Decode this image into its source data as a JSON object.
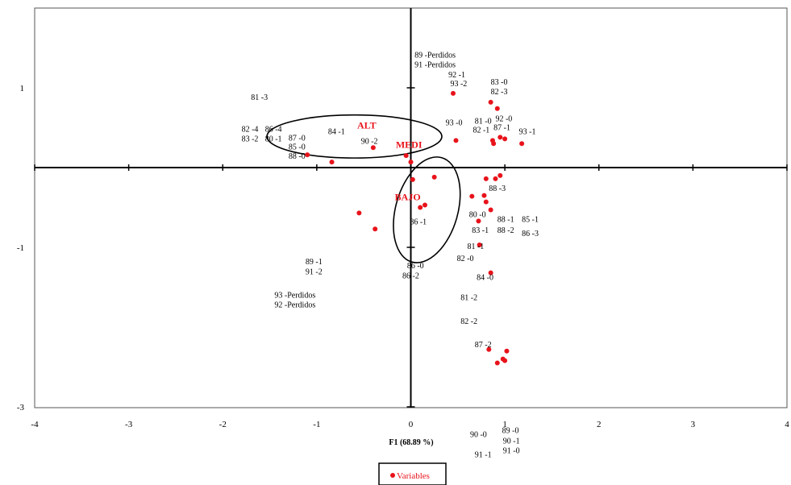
{
  "chart_data": {
    "type": "scatter",
    "xlabel": "F1 (68.89 %)",
    "xlim": [
      -4,
      4
    ],
    "ylim": [
      -3,
      2
    ],
    "x_ticks": [
      "-4",
      "-3",
      "-2",
      "-1",
      "0",
      "1",
      "2",
      "3",
      "4"
    ],
    "y_ticks": [
      {
        "value": 1,
        "label": "1"
      },
      {
        "value": -1,
        "label": "-1"
      },
      {
        "value": -3,
        "label": "-3"
      }
    ],
    "grid": false,
    "legend": {
      "position": "bottom-center",
      "entries": [
        "Variables"
      ]
    },
    "colors": {
      "points": "#e8131b",
      "categories": "#e8131b",
      "axes": "#000000"
    },
    "points": [
      {
        "x": -1.1,
        "y": 0.16
      },
      {
        "x": -0.84,
        "y": 0.07
      },
      {
        "x": -0.4,
        "y": 0.25
      },
      {
        "x": -0.05,
        "y": 0.15
      },
      {
        "x": 0.0,
        "y": 0.07
      },
      {
        "x": 0.45,
        "y": 0.93
      },
      {
        "x": 0.48,
        "y": 0.34
      },
      {
        "x": 0.85,
        "y": 0.82
      },
      {
        "x": 0.92,
        "y": 0.74
      },
      {
        "x": 0.87,
        "y": 0.34
      },
      {
        "x": 0.88,
        "y": 0.3
      },
      {
        "x": 0.95,
        "y": 0.38
      },
      {
        "x": 1.0,
        "y": 0.36
      },
      {
        "x": 1.18,
        "y": 0.3
      },
      {
        "x": 0.8,
        "y": -0.14
      },
      {
        "x": 0.9,
        "y": -0.14
      },
      {
        "x": 0.95,
        "y": -0.1
      },
      {
        "x": 0.8,
        "y": -0.43
      },
      {
        "x": 0.78,
        "y": -0.35
      },
      {
        "x": 0.85,
        "y": -0.53
      },
      {
        "x": 0.65,
        "y": -0.36
      },
      {
        "x": 0.72,
        "y": -0.67
      },
      {
        "x": 0.73,
        "y": -0.97
      },
      {
        "x": 0.85,
        "y": -1.32
      },
      {
        "x": 0.02,
        "y": -0.15
      },
      {
        "x": 0.25,
        "y": -0.12
      },
      {
        "x": 0.15,
        "y": -0.47
      },
      {
        "x": 0.1,
        "y": -0.5
      },
      {
        "x": -0.55,
        "y": -0.57
      },
      {
        "x": -0.38,
        "y": -0.77
      },
      {
        "x": 0.83,
        "y": -2.28
      },
      {
        "x": 0.92,
        "y": -2.45
      },
      {
        "x": 0.98,
        "y": -2.4
      },
      {
        "x": 1.02,
        "y": -2.3
      },
      {
        "x": 1.0,
        "y": -2.42
      }
    ],
    "labels": [
      {
        "text": "89 -Perdidos",
        "x": 0.04,
        "y": 1.42
      },
      {
        "text": "91 -Perdidos",
        "x": 0.04,
        "y": 1.3
      },
      {
        "text": "92 -1",
        "x": 0.4,
        "y": 1.17
      },
      {
        "text": "93 -2",
        "x": 0.42,
        "y": 1.06
      },
      {
        "text": "83 -0",
        "x": 0.85,
        "y": 1.08
      },
      {
        "text": "82 -3",
        "x": 0.85,
        "y": 0.96
      },
      {
        "text": "81 -0",
        "x": 0.68,
        "y": 0.59
      },
      {
        "text": "92 -0",
        "x": 0.9,
        "y": 0.62
      },
      {
        "text": "93 -0",
        "x": 0.37,
        "y": 0.57
      },
      {
        "text": "87 -1",
        "x": 0.88,
        "y": 0.51
      },
      {
        "text": "82 -1",
        "x": 0.66,
        "y": 0.48
      },
      {
        "text": "93 -1",
        "x": 1.15,
        "y": 0.46
      },
      {
        "text": "81 -3",
        "x": -1.7,
        "y": 0.89
      },
      {
        "text": "82 -4",
        "x": -1.8,
        "y": 0.49
      },
      {
        "text": "86 -4",
        "x": -1.55,
        "y": 0.49
      },
      {
        "text": "84 -1",
        "x": -0.88,
        "y": 0.46
      },
      {
        "text": "87 -0",
        "x": -1.3,
        "y": 0.38
      },
      {
        "text": "83 -2",
        "x": -1.8,
        "y": 0.37
      },
      {
        "text": "80 -1",
        "x": -1.55,
        "y": 0.37
      },
      {
        "text": "90 -2",
        "x": -0.53,
        "y": 0.34
      },
      {
        "text": "85 -0",
        "x": -1.3,
        "y": 0.27
      },
      {
        "text": "88 -0",
        "x": -1.3,
        "y": 0.15
      },
      {
        "text": "88 -3",
        "x": 0.83,
        "y": -0.25
      },
      {
        "text": "80 -0",
        "x": 0.62,
        "y": -0.58
      },
      {
        "text": "88 -1",
        "x": 0.92,
        "y": -0.64
      },
      {
        "text": "85 -1",
        "x": 1.18,
        "y": -0.64
      },
      {
        "text": "83 -1",
        "x": 0.65,
        "y": -0.78
      },
      {
        "text": "88 -2",
        "x": 0.92,
        "y": -0.78
      },
      {
        "text": "86 -3",
        "x": 1.18,
        "y": -0.82
      },
      {
        "text": "81 -1",
        "x": 0.6,
        "y": -0.98
      },
      {
        "text": "82 -0",
        "x": 0.49,
        "y": -1.13
      },
      {
        "text": "84 -0",
        "x": 0.7,
        "y": -1.37
      },
      {
        "text": "81 -2",
        "x": 0.53,
        "y": -1.62
      },
      {
        "text": "82 -2",
        "x": 0.53,
        "y": -1.92
      },
      {
        "text": "87 -2",
        "x": 0.68,
        "y": -2.21
      },
      {
        "text": "86 -1",
        "x": -0.01,
        "y": -0.67
      },
      {
        "text": "86 -0",
        "x": -0.04,
        "y": -1.22
      },
      {
        "text": "86 -2",
        "x": -0.09,
        "y": -1.35
      },
      {
        "text": "89 -1",
        "x": -1.12,
        "y": -1.17
      },
      {
        "text": "91 -2",
        "x": -1.12,
        "y": -1.3
      },
      {
        "text": "93 -Perdidos",
        "x": -1.45,
        "y": -1.59
      },
      {
        "text": "92 -Perdidos",
        "x": -1.45,
        "y": -1.71
      },
      {
        "text": "89 -0",
        "x": 0.97,
        "y": -3.29
      },
      {
        "text": "90 -0",
        "x": 0.63,
        "y": -3.34
      },
      {
        "text": "90 -1",
        "x": 0.98,
        "y": -3.42
      },
      {
        "text": "91 -0",
        "x": 0.98,
        "y": -3.54
      },
      {
        "text": "91 -1",
        "x": 0.68,
        "y": -3.59
      }
    ],
    "categories": [
      {
        "text": "ALT",
        "x": -0.57,
        "y": 0.53
      },
      {
        "text": "MEDI",
        "x": -0.16,
        "y": 0.29
      },
      {
        "text": "BAJO",
        "x": -0.17,
        "y": -0.37
      }
    ],
    "ellipses": [
      {
        "cx": -0.6,
        "cy": 0.39,
        "rx": 0.93,
        "ry": 0.27,
        "rotate": 0
      },
      {
        "cx": 0.17,
        "cy": -0.53,
        "rx": 0.33,
        "ry": 0.68,
        "rotate": 16
      }
    ]
  }
}
